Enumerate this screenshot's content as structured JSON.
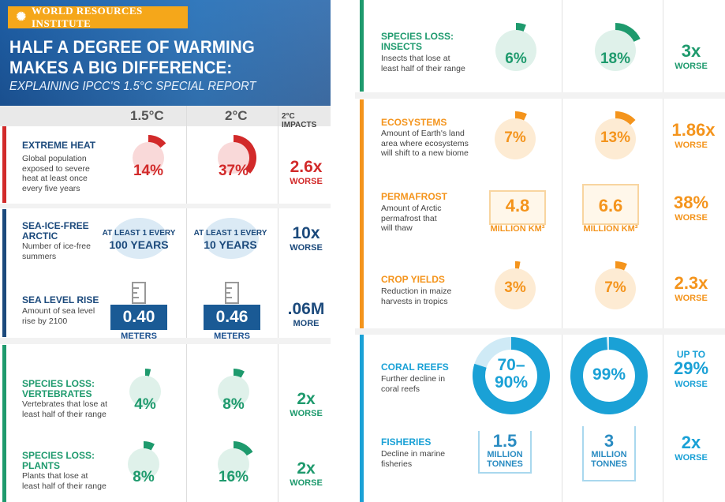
{
  "header": {
    "org": "WORLD RESOURCES INSTITUTE",
    "title_line1": "HALF A DEGREE OF WARMING",
    "title_line2": "MAKES A BIG DIFFERENCE:",
    "subtitle": "EXPLAINING IPCC'S 1.5°C SPECIAL REPORT"
  },
  "columns": {
    "c15": "1.5°C",
    "c2": "2°C",
    "impacts": "2°C IMPACTS"
  },
  "colors": {
    "red": "#d22a2a",
    "navy": "#1c4a7c",
    "green": "#1e9a6d",
    "orange": "#f4941c",
    "cyan": "#1aa1d6"
  },
  "rows": {
    "heat": {
      "title1": "EXTREME HEAT",
      "desc": [
        "Global population",
        "exposed to severe",
        "heat at least once",
        "every five years"
      ],
      "v15": "14%",
      "v2": "37%",
      "f15": 0.14,
      "f2": 0.37,
      "impact_big": "2.6x",
      "impact_small": "WORSE"
    },
    "arctic": {
      "title1": "SEA-ICE-FREE",
      "title2": "ARCTIC",
      "desc": [
        "Number of ice-free",
        "summers"
      ],
      "v15_small": "AT LEAST 1 EVERY",
      "v15_big": "100 YEARS",
      "v2_small": "AT LEAST 1 EVERY",
      "v2_big": "10 YEARS",
      "impact_big": "10x",
      "impact_small": "WORSE"
    },
    "sea": {
      "title1": "SEA LEVEL RISE",
      "desc": [
        "Amount of sea level",
        "rise by 2100"
      ],
      "v15": "0.40",
      "v2": "0.46",
      "unit": "METERS",
      "impact_big": ".06M",
      "impact_small": "MORE"
    },
    "vert": {
      "title1": "SPECIES LOSS:",
      "title2": "VERTEBRATES",
      "desc": [
        "Vertebrates that lose at",
        "least half of their range"
      ],
      "v15": "4%",
      "v2": "8%",
      "f15": 0.04,
      "f2": 0.08,
      "impact_big": "2x",
      "impact_small": "WORSE"
    },
    "plants": {
      "title1": "SPECIES LOSS:",
      "title2": "PLANTS",
      "desc": [
        "Plants that lose at",
        "least half of their range"
      ],
      "v15": "8%",
      "v2": "16%",
      "f15": 0.08,
      "f2": 0.16,
      "impact_big": "2x",
      "impact_small": "WORSE"
    },
    "insects": {
      "title1": "SPECIES LOSS:",
      "title2": "INSECTS",
      "desc": [
        "Insects that lose at",
        "least half of their range"
      ],
      "v15": "6%",
      "v2": "18%",
      "f15": 0.06,
      "f2": 0.18,
      "impact_big": "3x",
      "impact_small": "WORSE"
    },
    "eco": {
      "title1": "ECOSYSTEMS",
      "desc": [
        "Amount of Earth's land",
        "area where ecosystems",
        "will shift to a new biome"
      ],
      "v15": "7%",
      "v2": "13%",
      "f15": 0.07,
      "f2": 0.13,
      "impact_big": "1.86x",
      "impact_small": "WORSE"
    },
    "perma": {
      "title1": "PERMAFROST",
      "desc": [
        "Amount of Arctic",
        "permafrost that",
        "will thaw"
      ],
      "v15": "4.8",
      "v2": "6.6",
      "unit": "MILLION KM²",
      "impact_big": "38%",
      "impact_small": "WORSE"
    },
    "crop": {
      "title1": "CROP YIELDS",
      "desc": [
        "Reduction in maize",
        "harvests in tropics"
      ],
      "v15": "3%",
      "v2": "7%",
      "f15": 0.03,
      "f2": 0.07,
      "impact_big": "2.3x",
      "impact_small": "WORSE"
    },
    "coral": {
      "title1": "CORAL REEFS",
      "desc": [
        "Further decline in",
        "coral reefs"
      ],
      "v15_line1": "70–",
      "v15_line2": "90%",
      "v2": "99%",
      "f15": 0.8,
      "f2": 0.99,
      "impact_top": "UP TO",
      "impact_big": "29%",
      "impact_small": "WORSE"
    },
    "fish": {
      "title1": "FISHERIES",
      "desc": [
        "Decline in marine",
        "fisheries"
      ],
      "v15": "1.5",
      "v2": "3",
      "unit_line1": "MILLION",
      "unit_line2": "TONNES",
      "impact_big": "2x",
      "impact_small": "WORSE"
    }
  }
}
